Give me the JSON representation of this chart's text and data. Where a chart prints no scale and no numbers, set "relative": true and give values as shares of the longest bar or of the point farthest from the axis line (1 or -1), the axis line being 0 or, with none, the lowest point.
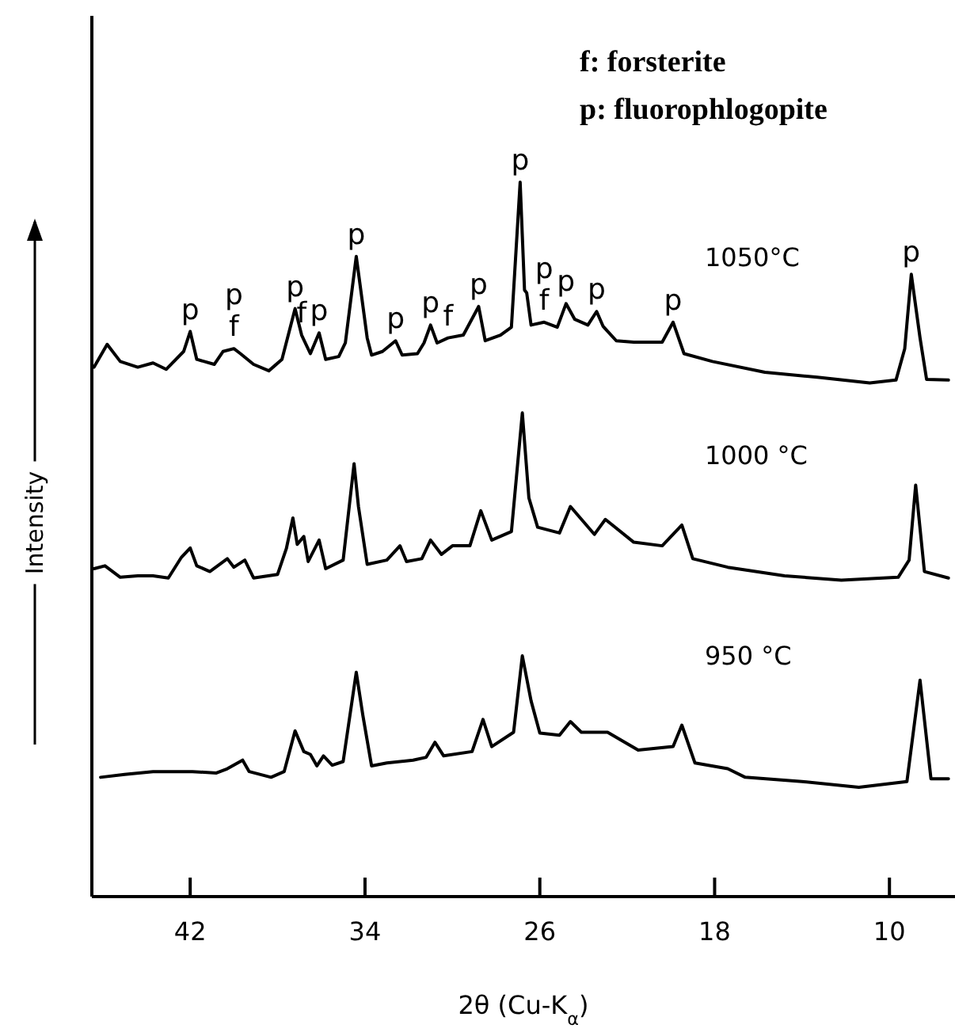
{
  "chart_data": {
    "type": "line",
    "relative": true,
    "xlabel": "2θ (Cu-K$_{α}$)",
    "ylabel": "Intensity",
    "xlim": [
      46.5,
      7
    ],
    "xticks": [
      42,
      34,
      26,
      18,
      10
    ],
    "series": [
      {
        "name": "1050°C",
        "color": "#000000",
        "x": [
          46.4,
          45.8,
          45.2,
          44.4,
          43.7,
          43.1,
          42.3,
          42.0,
          41.7,
          40.9,
          40.5,
          40.0,
          39.7,
          39.1,
          38.4,
          37.8,
          37.2,
          36.9,
          36.5,
          36.1,
          35.8,
          35.2,
          34.9,
          34.4,
          33.9,
          33.7,
          33.2,
          32.6,
          32.3,
          31.6,
          31.3,
          31.0,
          30.7,
          30.2,
          29.5,
          28.8,
          28.5,
          27.8,
          27.3,
          26.9,
          26.7,
          26.6,
          26.4,
          25.8,
          25.2,
          24.8,
          24.4,
          23.8,
          23.4,
          23.1,
          22.5,
          21.7,
          20.4,
          19.9,
          19.4,
          18.1,
          15.7,
          13.3,
          10.9,
          9.7,
          9.3,
          9.0,
          8.6,
          8.3,
          7.3
        ],
        "values": [
          0.741,
          0.773,
          0.749,
          0.741,
          0.747,
          0.738,
          0.763,
          0.791,
          0.752,
          0.745,
          0.763,
          0.767,
          0.76,
          0.745,
          0.736,
          0.752,
          0.823,
          0.786,
          0.76,
          0.789,
          0.752,
          0.756,
          0.775,
          0.896,
          0.782,
          0.758,
          0.763,
          0.778,
          0.758,
          0.76,
          0.775,
          0.8,
          0.775,
          0.782,
          0.786,
          0.826,
          0.778,
          0.786,
          0.797,
          1,
          0.849,
          0.845,
          0.8,
          0.804,
          0.797,
          0.83,
          0.808,
          0.8,
          0.819,
          0.798,
          0.778,
          0.776,
          0.776,
          0.804,
          0.76,
          0.749,
          0.734,
          0.727,
          0.719,
          0.723,
          0.767,
          0.871,
          0.782,
          0.724,
          0.723
        ]
      },
      {
        "name": "1000 °C",
        "color": "#000000",
        "x": [
          46.4,
          45.9,
          45.2,
          44.4,
          43.7,
          43.0,
          42.4,
          42.0,
          41.7,
          41.1,
          40.3,
          40.0,
          39.5,
          39.1,
          38.0,
          37.6,
          37.3,
          37.1,
          36.8,
          36.6,
          36.1,
          35.8,
          35.0,
          34.5,
          34.3,
          33.9,
          33.0,
          32.4,
          32.1,
          31.4,
          31.0,
          30.5,
          30.0,
          29.2,
          28.7,
          28.2,
          27.3,
          26.8,
          26.5,
          26.1,
          25.1,
          24.6,
          23.5,
          23.0,
          21.7,
          20.4,
          19.5,
          19.0,
          17.4,
          14.8,
          12.2,
          9.6,
          9.1,
          8.8,
          8.4,
          7.3
        ],
        "values": [
          0.459,
          0.463,
          0.447,
          0.449,
          0.449,
          0.446,
          0.475,
          0.488,
          0.463,
          0.455,
          0.473,
          0.461,
          0.471,
          0.446,
          0.451,
          0.487,
          0.53,
          0.493,
          0.504,
          0.469,
          0.499,
          0.459,
          0.471,
          0.606,
          0.546,
          0.465,
          0.471,
          0.491,
          0.469,
          0.473,
          0.499,
          0.479,
          0.491,
          0.491,
          0.54,
          0.499,
          0.511,
          0.677,
          0.558,
          0.517,
          0.509,
          0.546,
          0.507,
          0.528,
          0.496,
          0.491,
          0.52,
          0.473,
          0.461,
          0.449,
          0.443,
          0.447,
          0.471,
          0.576,
          0.455,
          0.446
        ]
      },
      {
        "name": "950 °C",
        "color": "#000000",
        "x": [
          46.1,
          45.0,
          43.7,
          41.9,
          40.8,
          40.3,
          39.6,
          39.3,
          38.3,
          37.7,
          37.2,
          36.8,
          36.5,
          36.2,
          35.9,
          35.5,
          35.0,
          34.4,
          34.1,
          33.7,
          33.0,
          31.8,
          31.2,
          30.8,
          30.4,
          29.1,
          28.6,
          28.2,
          27.2,
          26.8,
          26.4,
          26.0,
          25.1,
          24.6,
          24.1,
          22.9,
          21.5,
          19.9,
          19.5,
          18.9,
          17.4,
          16.6,
          14.0,
          11.4,
          9.2,
          8.6,
          8.1,
          7.3
        ],
        "values": [
          0.167,
          0.171,
          0.175,
          0.175,
          0.173,
          0.179,
          0.191,
          0.175,
          0.167,
          0.175,
          0.232,
          0.203,
          0.199,
          0.183,
          0.197,
          0.184,
          0.189,
          0.314,
          0.254,
          0.183,
          0.187,
          0.191,
          0.195,
          0.216,
          0.197,
          0.203,
          0.248,
          0.21,
          0.23,
          0.337,
          0.274,
          0.229,
          0.226,
          0.245,
          0.23,
          0.23,
          0.205,
          0.21,
          0.24,
          0.187,
          0.179,
          0.167,
          0.161,
          0.153,
          0.161,
          0.303,
          0.165,
          0.165
        ]
      }
    ],
    "annotations": [
      "f: forsterite",
      "p: fluorophlogopite",
      {
        "text": "p",
        "x": 42.0,
        "y": 0.791
      },
      {
        "text": "f",
        "x": 40.0,
        "y": 0.767
      },
      {
        "text": "p",
        "x": 40.0,
        "y": 0.767
      },
      {
        "text": "p",
        "x": 37.2,
        "y": 0.823
      },
      {
        "text": "f",
        "x": 36.9,
        "y": 0.786
      },
      {
        "text": "p",
        "x": 36.1,
        "y": 0.789
      },
      {
        "text": "p",
        "x": 34.4,
        "y": 0.896
      },
      {
        "text": "p",
        "x": 32.6,
        "y": 0.778
      },
      {
        "text": "p",
        "x": 31.0,
        "y": 0.8
      },
      {
        "text": "f",
        "x": 30.2,
        "y": 0.782
      },
      {
        "text": "p",
        "x": 28.8,
        "y": 0.826
      },
      {
        "text": "p",
        "x": 26.9,
        "y": 1
      },
      {
        "text": "f",
        "x": 25.8,
        "y": 0.804
      },
      {
        "text": "p",
        "x": 25.8,
        "y": 0.804
      },
      {
        "text": "p",
        "x": 24.8,
        "y": 0.83
      },
      {
        "text": "p",
        "x": 23.4,
        "y": 0.819
      },
      {
        "text": "p",
        "x": 19.9,
        "y": 0.804
      },
      {
        "text": "p",
        "x": 9.0,
        "y": 0.871
      }
    ]
  }
}
